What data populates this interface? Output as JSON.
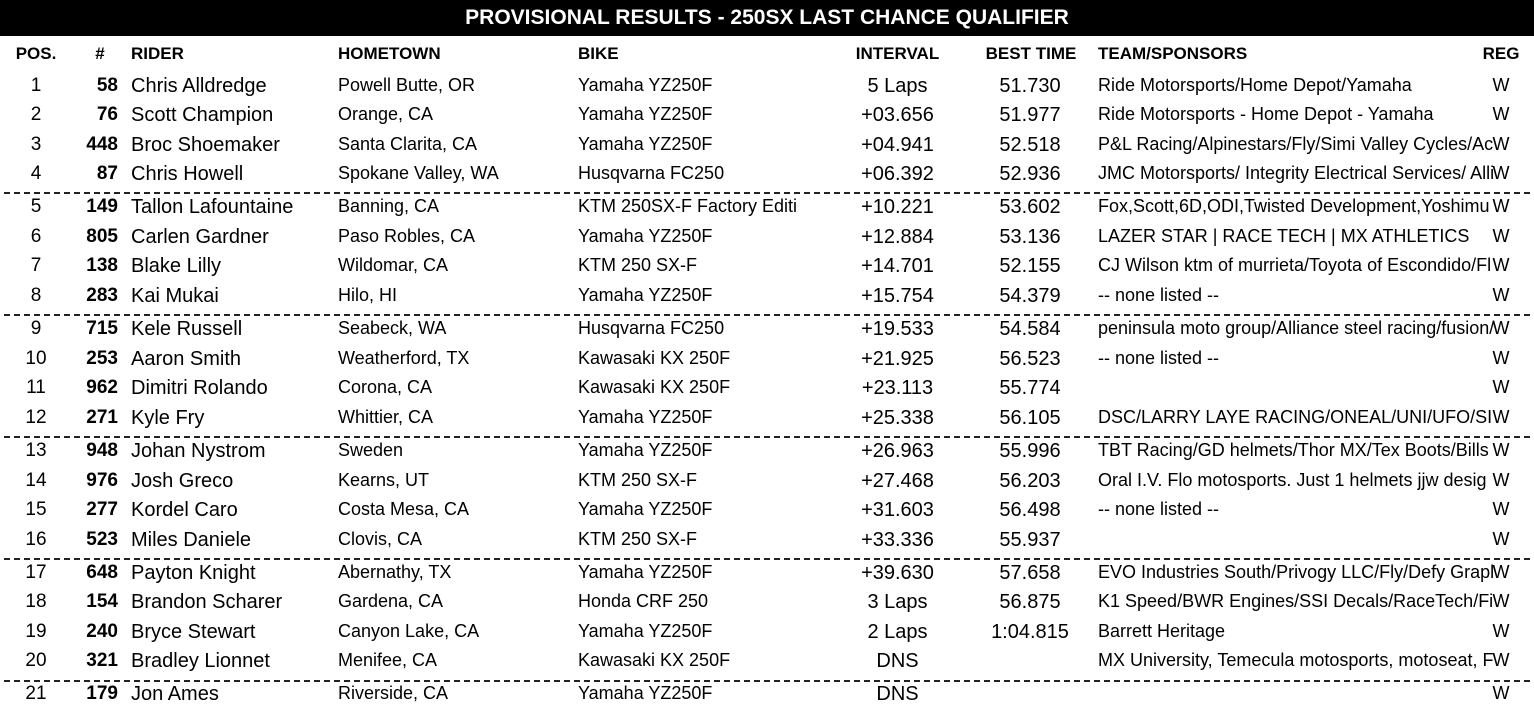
{
  "title": "PROVISIONAL RESULTS - 250SX LAST CHANCE QUALIFIER",
  "columns": {
    "pos": "POS.",
    "num": "#",
    "rider": "RIDER",
    "hometown": "HOMETOWN",
    "bike": "BIKE",
    "interval": "INTERVAL",
    "best_time": "BEST TIME",
    "team": "TEAM/SPONSORS",
    "reg": "REG"
  },
  "rows": [
    {
      "pos": "1",
      "num": "58",
      "rider": "Chris Alldredge",
      "hometown": "Powell Butte, OR",
      "bike": "Yamaha YZ250F",
      "interval": "5 Laps",
      "best": "51.730",
      "team": "Ride Motorsports/Home Depot/Yamaha",
      "reg": "W"
    },
    {
      "pos": "2",
      "num": "76",
      "rider": "Scott Champion",
      "hometown": "Orange, CA",
      "bike": "Yamaha YZ250F",
      "interval": "+03.656",
      "best": "51.977",
      "team": "Ride Motorsports - Home Depot - Yamaha",
      "reg": "W"
    },
    {
      "pos": "3",
      "num": "448",
      "rider": "Broc Shoemaker",
      "hometown": "Santa Clarita, CA",
      "bike": "Yamaha YZ250F",
      "interval": "+04.941",
      "best": "52.518",
      "team": "P&L Racing/Alpinestars/Fly/Simi Valley Cycles/Ac",
      "reg": "W"
    },
    {
      "pos": "4",
      "num": "87",
      "rider": "Chris Howell",
      "hometown": "Spokane Valley, WA",
      "bike": "Husqvarna FC250",
      "interval": "+06.392",
      "best": "52.936",
      "team": "JMC Motorsports/ Integrity Electrical Services/ Alli",
      "reg": "W"
    },
    {
      "pos": "5",
      "num": "149",
      "rider": "Tallon Lafountaine",
      "hometown": "Banning, CA",
      "bike": "KTM 250SX-F Factory Editi",
      "interval": "+10.221",
      "best": "53.602",
      "team": "Fox,Scott,6D,ODI,Twisted Development,Yoshimu",
      "reg": "W"
    },
    {
      "pos": "6",
      "num": "805",
      "rider": "Carlen Gardner",
      "hometown": "Paso Robles, CA",
      "bike": "Yamaha YZ250F",
      "interval": "+12.884",
      "best": "53.136",
      "team": "LAZER STAR | RACE TECH | MX ATHLETICS",
      "reg": "W"
    },
    {
      "pos": "7",
      "num": "138",
      "rider": "Blake Lilly",
      "hometown": "Wildomar, CA",
      "bike": "KTM 250 SX-F",
      "interval": "+14.701",
      "best": "52.155",
      "team": "CJ Wilson ktm of murrieta/Toyota of Escondido/Fl",
      "reg": "W"
    },
    {
      "pos": "8",
      "num": "283",
      "rider": "Kai Mukai",
      "hometown": "Hilo, HI",
      "bike": "Yamaha YZ250F",
      "interval": "+15.754",
      "best": "54.379",
      "team": "-- none listed --",
      "reg": "W"
    },
    {
      "pos": "9",
      "num": "715",
      "rider": "Kele Russell",
      "hometown": "Seabeck, WA",
      "bike": "Husqvarna FC250",
      "interval": "+19.533",
      "best": "54.584",
      "team": "peninsula moto group/Alliance steel racing/fusion/",
      "reg": "W"
    },
    {
      "pos": "10",
      "num": "253",
      "rider": "Aaron Smith",
      "hometown": "Weatherford, TX",
      "bike": "Kawasaki KX 250F",
      "interval": "+21.925",
      "best": "56.523",
      "team": "-- none listed --",
      "reg": "W"
    },
    {
      "pos": "11",
      "num": "962",
      "rider": "Dimitri Rolando",
      "hometown": "Corona, CA",
      "bike": "Kawasaki KX 250F",
      "interval": "+23.113",
      "best": "55.774",
      "team": "",
      "reg": "W"
    },
    {
      "pos": "12",
      "num": "271",
      "rider": "Kyle Fry",
      "hometown": "Whittier, CA",
      "bike": "Yamaha YZ250F",
      "interval": "+25.338",
      "best": "56.105",
      "team": "DSC/LARRY LAYE RACING/ONEAL/UNI/UFO/SI",
      "reg": "W"
    },
    {
      "pos": "13",
      "num": "948",
      "rider": "Johan Nystrom",
      "hometown": "Sweden",
      "bike": "Yamaha YZ250F",
      "interval": "+26.963",
      "best": "55.996",
      "team": "TBT Racing/GD helmets/Thor MX/Tex Boots/Bills",
      "reg": "W"
    },
    {
      "pos": "14",
      "num": "976",
      "rider": "Josh Greco",
      "hometown": "Kearns, UT",
      "bike": "KTM 250 SX-F",
      "interval": "+27.468",
      "best": "56.203",
      "team": "Oral I.V. Flo motosports.  Just 1 helmets  jjw desig",
      "reg": "W"
    },
    {
      "pos": "15",
      "num": "277",
      "rider": "Kordel Caro",
      "hometown": "Costa Mesa, CA",
      "bike": "Yamaha YZ250F",
      "interval": "+31.603",
      "best": "56.498",
      "team": "-- none listed --",
      "reg": "W"
    },
    {
      "pos": "16",
      "num": "523",
      "rider": "Miles Daniele",
      "hometown": "Clovis, CA",
      "bike": "KTM 250 SX-F",
      "interval": "+33.336",
      "best": "55.937",
      "team": "",
      "reg": "W"
    },
    {
      "pos": "17",
      "num": "648",
      "rider": "Payton Knight",
      "hometown": "Abernathy, TX",
      "bike": "Yamaha YZ250F",
      "interval": "+39.630",
      "best": "57.658",
      "team": "EVO Industries South/Privogy LLC/Fly/Defy Grapl",
      "reg": "W"
    },
    {
      "pos": "18",
      "num": "154",
      "rider": "Brandon Scharer",
      "hometown": "Gardena, CA",
      "bike": "Honda CRF 250",
      "interval": "3 Laps",
      "best": "56.875",
      "team": "K1 Speed/BWR Engines/SSI Decals/RaceTech/Fi",
      "reg": "W"
    },
    {
      "pos": "19",
      "num": "240",
      "rider": "Bryce Stewart",
      "hometown": "Canyon Lake, CA",
      "bike": "Yamaha YZ250F",
      "interval": "2 Laps",
      "best": "1:04.815",
      "team": "Barrett Heritage",
      "reg": "W"
    },
    {
      "pos": "20",
      "num": "321",
      "rider": "Bradley Lionnet",
      "hometown": "Menifee, CA",
      "bike": "Kawasaki KX 250F",
      "interval": "DNS",
      "best": "",
      "team": "MX University, Temecula motosports, motoseat, F",
      "reg": "W"
    },
    {
      "pos": "21",
      "num": "179",
      "rider": "Jon Ames",
      "hometown": "Riverside, CA",
      "bike": "Yamaha YZ250F",
      "interval": "DNS",
      "best": "",
      "team": "",
      "reg": "W"
    }
  ]
}
